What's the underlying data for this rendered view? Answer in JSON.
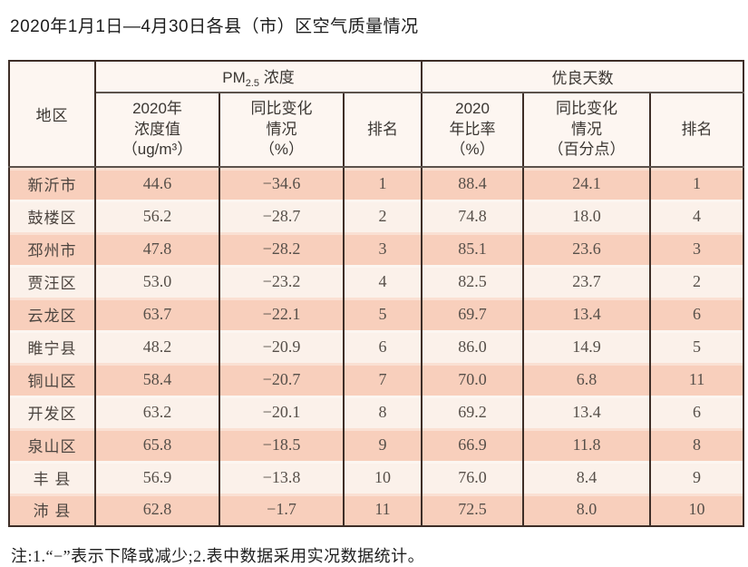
{
  "title": "2020年1月1日—4月30日各县（市）区空气质量情况",
  "note": "注:1.“−”表示下降或减少;2.表中数据采用实况数据统计。",
  "colors": {
    "row-odd": "#f8cfbc",
    "row-even": "#fbf1ea",
    "header-bg": "#fdf6f1",
    "border-dark": "#3e2e27",
    "header-sep": "#5c524c",
    "text-data": "#564f49"
  },
  "table": {
    "region_header": "地区",
    "pm_group": {
      "prefix": "PM",
      "sub": "2.5",
      "suffix": " 浓度"
    },
    "good_group": "优良天数",
    "subheaders": {
      "pm_value": "2020年\n浓度值\n（ug/m³）",
      "pm_change": "同比变化\n情况\n（%）",
      "pm_rank": "排名",
      "good_rate": "2020\n年比率\n（%）",
      "good_change": "同比变化\n情况\n（百分点）",
      "good_rank": "排名"
    },
    "rows": [
      {
        "region": "新沂市",
        "pm_value": "44.6",
        "pm_change": "−34.6",
        "pm_rank": "1",
        "good_rate": "88.4",
        "good_change": "24.1",
        "good_rank": "1"
      },
      {
        "region": "鼓楼区",
        "pm_value": "56.2",
        "pm_change": "−28.7",
        "pm_rank": "2",
        "good_rate": "74.8",
        "good_change": "18.0",
        "good_rank": "4"
      },
      {
        "region": "邳州市",
        "pm_value": "47.8",
        "pm_change": "−28.2",
        "pm_rank": "3",
        "good_rate": "85.1",
        "good_change": "23.6",
        "good_rank": "3"
      },
      {
        "region": "贾汪区",
        "pm_value": "53.0",
        "pm_change": "−23.2",
        "pm_rank": "4",
        "good_rate": "82.5",
        "good_change": "23.7",
        "good_rank": "2"
      },
      {
        "region": "云龙区",
        "pm_value": "63.7",
        "pm_change": "−22.1",
        "pm_rank": "5",
        "good_rate": "69.7",
        "good_change": "13.4",
        "good_rank": "6"
      },
      {
        "region": "睢宁县",
        "pm_value": "48.2",
        "pm_change": "−20.9",
        "pm_rank": "6",
        "good_rate": "86.0",
        "good_change": "14.9",
        "good_rank": "5"
      },
      {
        "region": "铜山区",
        "pm_value": "58.4",
        "pm_change": "−20.7",
        "pm_rank": "7",
        "good_rate": "70.0",
        "good_change": "6.8",
        "good_rank": "11"
      },
      {
        "region": "开发区",
        "pm_value": "63.2",
        "pm_change": "−20.1",
        "pm_rank": "8",
        "good_rate": "69.2",
        "good_change": "13.4",
        "good_rank": "6"
      },
      {
        "region": "泉山区",
        "pm_value": "65.8",
        "pm_change": "−18.5",
        "pm_rank": "9",
        "good_rate": "66.9",
        "good_change": "11.8",
        "good_rank": "8"
      },
      {
        "region": "丰 县",
        "pm_value": "56.9",
        "pm_change": "−13.8",
        "pm_rank": "10",
        "good_rate": "76.0",
        "good_change": "8.4",
        "good_rank": "9"
      },
      {
        "region": "沛 县",
        "pm_value": "62.8",
        "pm_change": "−1.7",
        "pm_rank": "11",
        "good_rate": "72.5",
        "good_change": "8.0",
        "good_rank": "10"
      }
    ]
  }
}
